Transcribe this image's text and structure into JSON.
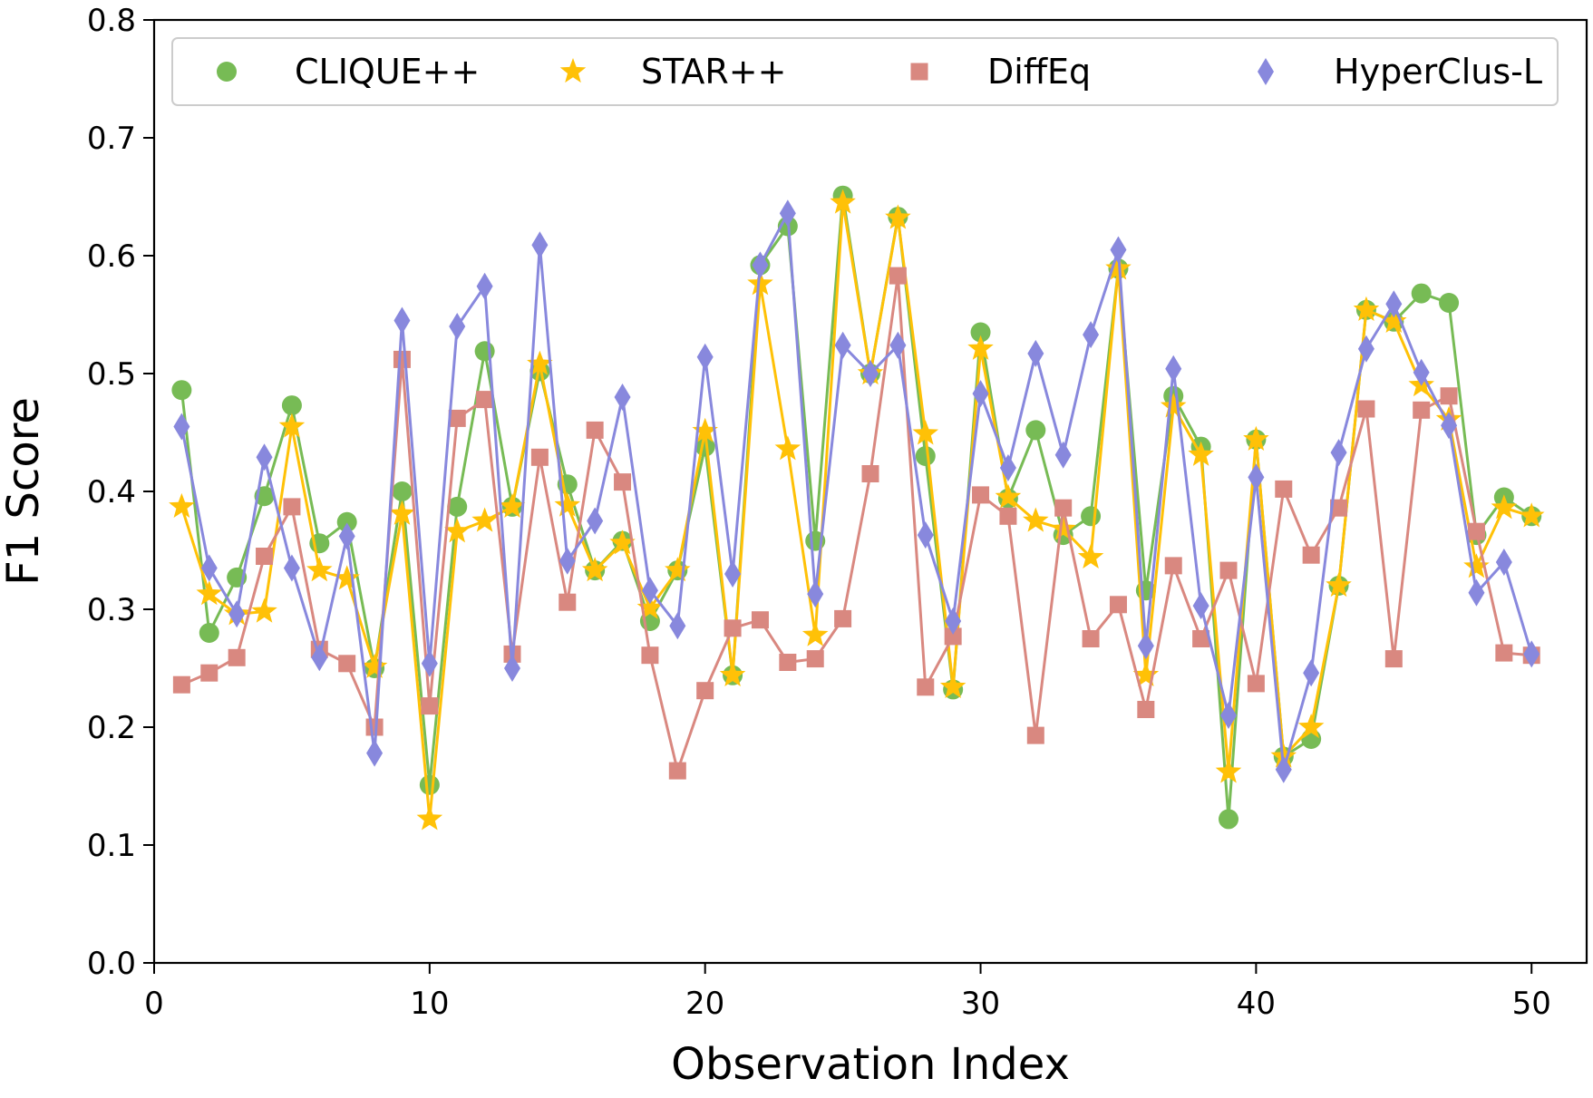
{
  "chart_data": {
    "type": "line",
    "title": "",
    "xlabel": "Observation Index",
    "ylabel": "F1 Score",
    "xlim": [
      0,
      52
    ],
    "ylim": [
      0.0,
      0.8
    ],
    "xticks": [
      0,
      10,
      20,
      30,
      40,
      50
    ],
    "xtick_labels": [
      "0",
      "10",
      "20",
      "30",
      "40",
      "50"
    ],
    "yticks": [
      0.0,
      0.1,
      0.2,
      0.3,
      0.4,
      0.5,
      0.6,
      0.7,
      0.8
    ],
    "ytick_labels": [
      "0.0",
      "0.1",
      "0.2",
      "0.3",
      "0.4",
      "0.5",
      "0.6",
      "0.7",
      "0.8"
    ],
    "grid": false,
    "legend": {
      "position": "top",
      "columns": 4
    },
    "x": [
      1,
      2,
      3,
      4,
      5,
      6,
      7,
      8,
      9,
      10,
      11,
      12,
      13,
      14,
      15,
      16,
      17,
      18,
      19,
      20,
      21,
      22,
      23,
      24,
      25,
      26,
      27,
      28,
      29,
      30,
      31,
      32,
      33,
      34,
      35,
      36,
      37,
      38,
      39,
      40,
      41,
      42,
      43,
      44,
      45,
      46,
      47,
      48,
      49,
      50
    ],
    "series": [
      {
        "name": "CLIQUE++",
        "color": "#77bb55",
        "marker": "circle",
        "values": [
          0.486,
          0.28,
          0.327,
          0.396,
          0.473,
          0.356,
          0.374,
          0.25,
          0.4,
          0.151,
          0.387,
          0.519,
          0.387,
          0.502,
          0.406,
          0.333,
          0.358,
          0.29,
          0.333,
          0.438,
          0.244,
          0.592,
          0.625,
          0.358,
          0.651,
          0.5,
          0.633,
          0.43,
          0.232,
          0.535,
          0.394,
          0.452,
          0.363,
          0.379,
          0.589,
          0.316,
          0.481,
          0.438,
          0.122,
          0.444,
          0.175,
          0.19,
          0.32,
          0.554,
          0.544,
          0.568,
          0.56,
          0.363,
          0.395,
          0.379
        ]
      },
      {
        "name": "STAR++",
        "color": "#ffc107",
        "marker": "star",
        "values": [
          0.387,
          0.313,
          0.296,
          0.298,
          0.455,
          0.333,
          0.326,
          0.251,
          0.381,
          0.122,
          0.366,
          0.375,
          0.387,
          0.508,
          0.388,
          0.333,
          0.356,
          0.301,
          0.333,
          0.451,
          0.244,
          0.576,
          0.436,
          0.278,
          0.645,
          0.5,
          0.632,
          0.449,
          0.234,
          0.521,
          0.395,
          0.375,
          0.368,
          0.344,
          0.589,
          0.244,
          0.472,
          0.431,
          0.162,
          0.444,
          0.175,
          0.2,
          0.32,
          0.554,
          0.544,
          0.49,
          0.461,
          0.336,
          0.386,
          0.379
        ]
      },
      {
        "name": "DiffEq",
        "color": "#d98880",
        "marker": "square",
        "values": [
          0.236,
          0.246,
          0.259,
          0.345,
          0.387,
          0.266,
          0.254,
          0.2,
          0.512,
          0.218,
          0.462,
          0.478,
          0.262,
          0.429,
          0.306,
          0.452,
          0.408,
          0.261,
          0.163,
          0.231,
          0.284,
          0.291,
          0.255,
          0.258,
          0.292,
          0.415,
          0.583,
          0.234,
          0.277,
          0.397,
          0.379,
          0.193,
          0.386,
          0.275,
          0.304,
          0.215,
          0.337,
          0.275,
          0.333,
          0.237,
          0.402,
          0.346,
          0.386,
          0.47,
          0.258,
          0.469,
          0.481,
          0.366,
          0.263,
          0.261
        ]
      },
      {
        "name": "HyperClus-L",
        "color": "#8888dd",
        "marker": "diamond",
        "values": [
          0.455,
          0.335,
          0.296,
          0.429,
          0.335,
          0.259,
          0.362,
          0.178,
          0.545,
          0.254,
          0.54,
          0.574,
          0.25,
          0.609,
          0.341,
          0.375,
          0.48,
          0.316,
          0.286,
          0.514,
          0.33,
          0.592,
          0.636,
          0.313,
          0.524,
          0.5,
          0.524,
          0.363,
          0.29,
          0.483,
          0.42,
          0.517,
          0.431,
          0.533,
          0.605,
          0.269,
          0.504,
          0.303,
          0.21,
          0.412,
          0.164,
          0.246,
          0.433,
          0.521,
          0.559,
          0.501,
          0.456,
          0.314,
          0.34,
          0.262
        ]
      }
    ]
  }
}
